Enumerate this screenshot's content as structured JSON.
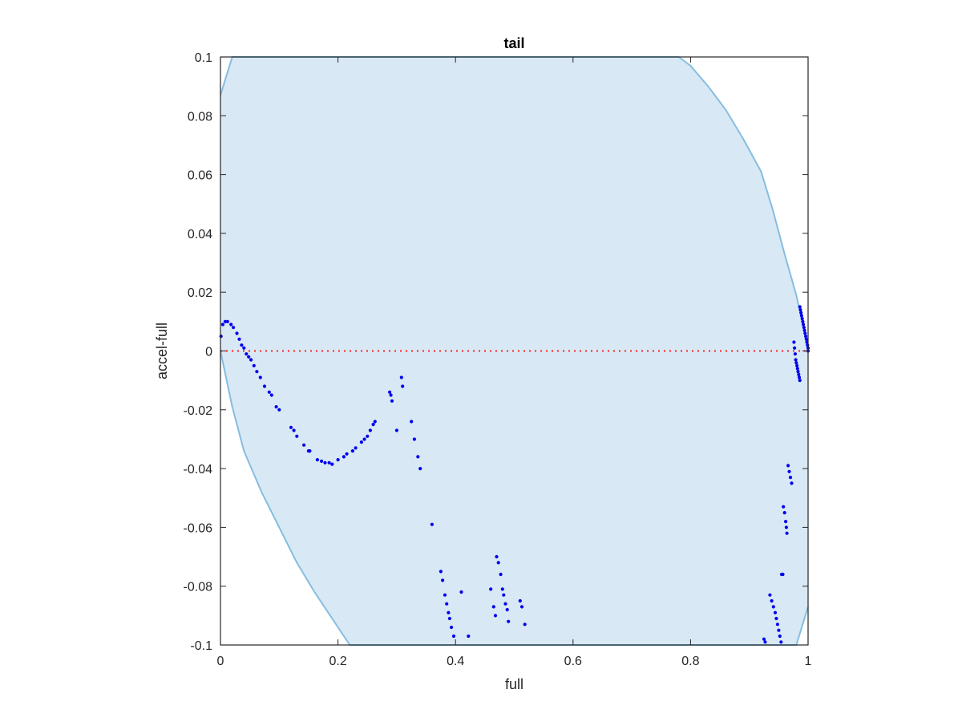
{
  "chart_data": {
    "type": "scatter",
    "title": "tail",
    "xlabel": "full",
    "ylabel": "accel-full",
    "xlim": [
      0,
      1
    ],
    "ylim": [
      -0.1,
      0.1
    ],
    "xticks": [
      0,
      0.2,
      0.4,
      0.6,
      0.8,
      1
    ],
    "xtick_labels": [
      "0",
      "0.2",
      "0.4",
      "0.6",
      "0.8",
      "1"
    ],
    "yticks": [
      0.1,
      0.08,
      0.06,
      0.04,
      0.02,
      0,
      -0.02,
      -0.04,
      -0.06,
      -0.08,
      -0.1
    ],
    "ytick_labels": [
      "0.1",
      "0.08",
      "0.06",
      "0.04",
      "0.02",
      "0",
      "-0.02",
      "-0.04",
      "-0.06",
      "-0.08",
      "-0.1"
    ],
    "grid": false,
    "colors": {
      "points": "#0000ee",
      "band_fill": "#d8e8f4",
      "band_edge": "#86bde0",
      "zero_line": "#ff2020"
    },
    "reference_line": {
      "y": 0,
      "style": "dotted"
    },
    "band": {
      "upper": [
        [
          0,
          0.087
        ],
        [
          0.02,
          0.1
        ],
        [
          0.78,
          0.1
        ],
        [
          0.8,
          0.097
        ],
        [
          0.83,
          0.09
        ],
        [
          0.86,
          0.082
        ],
        [
          0.89,
          0.072
        ],
        [
          0.92,
          0.061
        ],
        [
          0.94,
          0.048
        ],
        [
          0.96,
          0.033
        ],
        [
          0.98,
          0.019
        ],
        [
          0.99,
          0.01
        ],
        [
          1,
          0
        ]
      ],
      "lower": [
        [
          0,
          0
        ],
        [
          0.02,
          -0.019
        ],
        [
          0.04,
          -0.034
        ],
        [
          0.07,
          -0.048
        ],
        [
          0.1,
          -0.06
        ],
        [
          0.13,
          -0.072
        ],
        [
          0.16,
          -0.082
        ],
        [
          0.19,
          -0.091
        ],
        [
          0.22,
          -0.1
        ],
        [
          0.98,
          -0.1
        ],
        [
          1,
          -0.087
        ]
      ]
    },
    "series": [
      {
        "points": [
          [
            0.001,
            0.005
          ],
          [
            0.004,
            0.009
          ],
          [
            0.008,
            0.01
          ],
          [
            0.012,
            0.01
          ],
          [
            0.018,
            0.009
          ],
          [
            0.022,
            0.008
          ],
          [
            0.028,
            0.006
          ],
          [
            0.032,
            0.004
          ],
          [
            0.036,
            0.002
          ],
          [
            0.04,
            0.001
          ],
          [
            0.044,
            -0.001
          ],
          [
            0.048,
            -0.002
          ],
          [
            0.052,
            -0.003
          ],
          [
            0.057,
            -0.005
          ],
          [
            0.062,
            -0.007
          ],
          [
            0.068,
            -0.009
          ],
          [
            0.075,
            -0.012
          ],
          [
            0.083,
            -0.014
          ],
          [
            0.087,
            -0.015
          ],
          [
            0.095,
            -0.019
          ],
          [
            0.1,
            -0.02
          ],
          [
            0.12,
            -0.026
          ],
          [
            0.125,
            -0.027
          ],
          [
            0.13,
            -0.029
          ],
          [
            0.142,
            -0.032
          ],
          [
            0.15,
            -0.034
          ],
          [
            0.152,
            -0.034
          ],
          [
            0.165,
            -0.037
          ],
          [
            0.172,
            -0.0375
          ],
          [
            0.178,
            -0.038
          ],
          [
            0.185,
            -0.038
          ],
          [
            0.19,
            -0.0385
          ],
          [
            0.2,
            -0.037
          ],
          [
            0.21,
            -0.036
          ],
          [
            0.215,
            -0.035
          ],
          [
            0.225,
            -0.034
          ],
          [
            0.23,
            -0.033
          ],
          [
            0.24,
            -0.031
          ],
          [
            0.245,
            -0.03
          ],
          [
            0.25,
            -0.029
          ],
          [
            0.255,
            -0.027
          ],
          [
            0.26,
            -0.025
          ],
          [
            0.263,
            -0.024
          ],
          [
            0.288,
            -0.014
          ],
          [
            0.29,
            -0.015
          ],
          [
            0.292,
            -0.017
          ],
          [
            0.3,
            -0.027
          ],
          [
            0.308,
            -0.009
          ],
          [
            0.31,
            -0.012
          ],
          [
            0.325,
            -0.024
          ],
          [
            0.33,
            -0.03
          ],
          [
            0.336,
            -0.036
          ],
          [
            0.34,
            -0.04
          ],
          [
            0.36,
            -0.059
          ],
          [
            0.375,
            -0.075
          ],
          [
            0.378,
            -0.078
          ],
          [
            0.382,
            -0.083
          ],
          [
            0.385,
            -0.086
          ],
          [
            0.388,
            -0.089
          ],
          [
            0.39,
            -0.091
          ],
          [
            0.393,
            -0.094
          ],
          [
            0.397,
            -0.097
          ],
          [
            0.41,
            -0.082
          ],
          [
            0.422,
            -0.097
          ],
          [
            0.46,
            -0.081
          ],
          [
            0.465,
            -0.087
          ],
          [
            0.468,
            -0.09
          ],
          [
            0.47,
            -0.07
          ],
          [
            0.473,
            -0.072
          ],
          [
            0.477,
            -0.076
          ],
          [
            0.48,
            -0.081
          ],
          [
            0.482,
            -0.083
          ],
          [
            0.485,
            -0.086
          ],
          [
            0.488,
            -0.088
          ],
          [
            0.49,
            -0.092
          ],
          [
            0.51,
            -0.085
          ],
          [
            0.513,
            -0.087
          ],
          [
            0.518,
            -0.093
          ],
          [
            0.925,
            -0.098
          ],
          [
            0.927,
            -0.099
          ],
          [
            0.935,
            -0.083
          ],
          [
            0.938,
            -0.085
          ],
          [
            0.941,
            -0.087
          ],
          [
            0.944,
            -0.089
          ],
          [
            0.946,
            -0.091
          ],
          [
            0.948,
            -0.093
          ],
          [
            0.95,
            -0.095
          ],
          [
            0.952,
            -0.097
          ],
          [
            0.954,
            -0.099
          ],
          [
            0.955,
            -0.076
          ],
          [
            0.957,
            -0.076
          ],
          [
            0.958,
            -0.053
          ],
          [
            0.96,
            -0.055
          ],
          [
            0.962,
            -0.058
          ],
          [
            0.963,
            -0.06
          ],
          [
            0.964,
            -0.062
          ],
          [
            0.966,
            -0.039
          ],
          [
            0.968,
            -0.041
          ],
          [
            0.97,
            -0.043
          ],
          [
            0.972,
            -0.045
          ],
          [
            0.976,
            0.003
          ],
          [
            0.977,
            0.001
          ],
          [
            0.978,
            -0.001
          ],
          [
            0.979,
            -0.003
          ],
          [
            0.98,
            -0.004
          ],
          [
            0.981,
            -0.005
          ],
          [
            0.982,
            -0.006
          ],
          [
            0.983,
            -0.007
          ],
          [
            0.984,
            -0.008
          ],
          [
            0.985,
            -0.009
          ],
          [
            0.986,
            -0.01
          ],
          [
            0.986,
            0.015
          ],
          [
            0.987,
            0.014
          ],
          [
            0.988,
            0.013
          ],
          [
            0.989,
            0.012
          ],
          [
            0.99,
            0.011
          ],
          [
            0.991,
            0.01
          ],
          [
            0.992,
            0.009
          ],
          [
            0.993,
            0.008
          ],
          [
            0.994,
            0.007
          ],
          [
            0.995,
            0.006
          ],
          [
            0.996,
            0.005
          ],
          [
            0.997,
            0.004
          ],
          [
            0.998,
            0.003
          ],
          [
            0.999,
            0.002
          ],
          [
            1.0,
            0.001
          ],
          [
            1.0,
            0.0
          ]
        ]
      }
    ]
  }
}
